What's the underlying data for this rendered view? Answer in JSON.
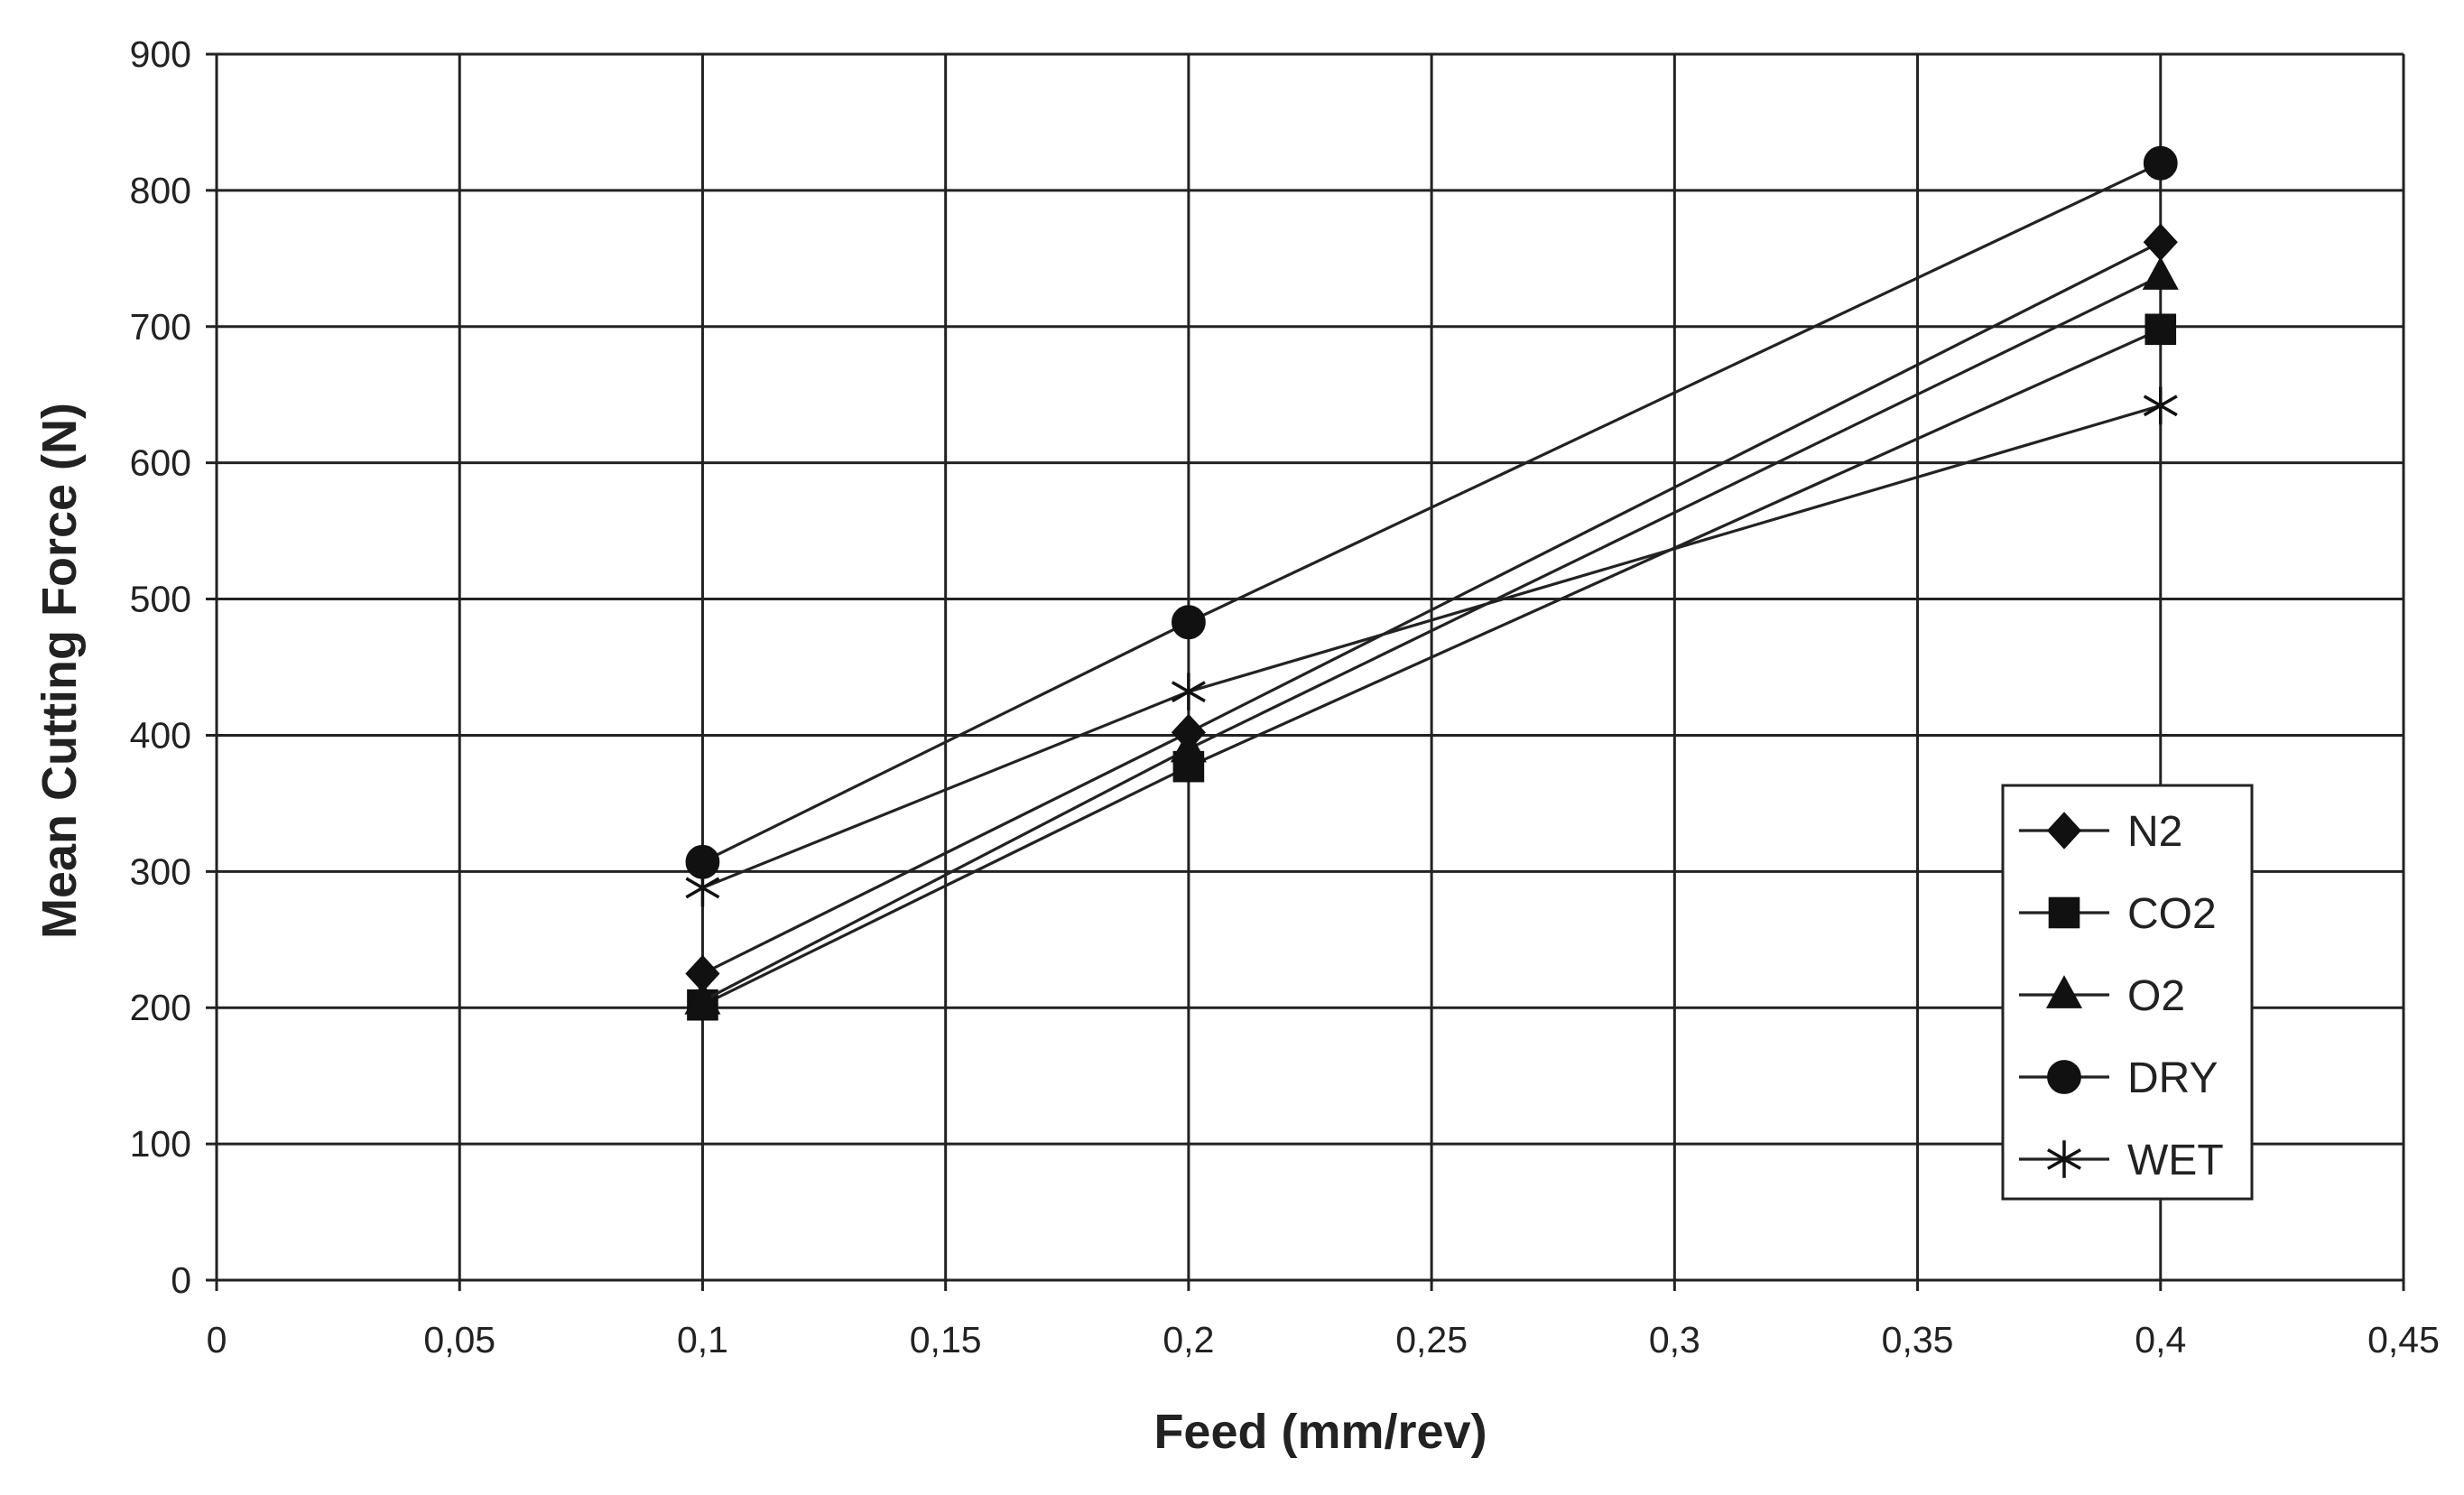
{
  "chart_data": {
    "type": "line",
    "title": "",
    "xlabel": "Feed (mm/rev)",
    "ylabel": "Mean Cutting Force (N)",
    "xlim": [
      0,
      0.45
    ],
    "ylim": [
      0,
      900
    ],
    "grid": true,
    "legend_position": "right",
    "x_ticks": [
      "0",
      "0,05",
      "0,1",
      "0,15",
      "0,2",
      "0,25",
      "0,3",
      "0,35",
      "0,4",
      "0,45"
    ],
    "y_ticks": [
      "0",
      "100",
      "200",
      "300",
      "400",
      "500",
      "600",
      "700",
      "800",
      "900"
    ],
    "x": [
      0.1,
      0.2,
      0.4
    ],
    "series": [
      {
        "name": "N2",
        "marker": "diamond",
        "values": [
          225,
          402,
          762
        ]
      },
      {
        "name": "CO2",
        "marker": "square",
        "values": [
          202,
          377,
          698
        ]
      },
      {
        "name": "O2",
        "marker": "triangle",
        "values": [
          205,
          390,
          737
        ]
      },
      {
        "name": "DRY",
        "marker": "circle",
        "values": [
          307,
          483,
          820
        ]
      },
      {
        "name": "WET",
        "marker": "star",
        "values": [
          288,
          432,
          642
        ]
      }
    ]
  },
  "colors": {
    "background": "#ffffff",
    "ink": "#111111"
  }
}
